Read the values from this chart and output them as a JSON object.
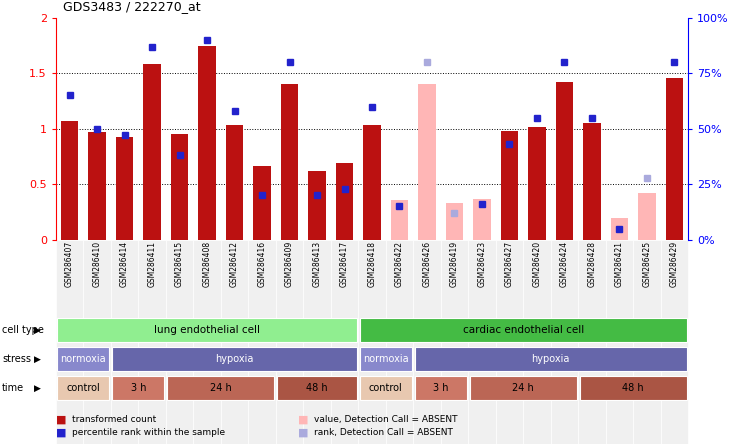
{
  "title": "GDS3483 / 222270_at",
  "samples": [
    "GSM286407",
    "GSM286410",
    "GSM286414",
    "GSM286411",
    "GSM286415",
    "GSM286408",
    "GSM286412",
    "GSM286416",
    "GSM286409",
    "GSM286413",
    "GSM286417",
    "GSM286418",
    "GSM286422",
    "GSM286426",
    "GSM286419",
    "GSM286423",
    "GSM286427",
    "GSM286420",
    "GSM286424",
    "GSM286428",
    "GSM286421",
    "GSM286425",
    "GSM286429"
  ],
  "bar_values": [
    1.07,
    0.97,
    0.93,
    1.58,
    0.95,
    1.75,
    1.03,
    0.66,
    1.4,
    0.62,
    0.69,
    1.03,
    0.36,
    1.4,
    0.33,
    0.37,
    0.98,
    1.02,
    1.42,
    1.05,
    0.2,
    0.42,
    1.46
  ],
  "rank_values": [
    65,
    50,
    47,
    87,
    38,
    90,
    58,
    20,
    80,
    20,
    23,
    60,
    15,
    80,
    12,
    16,
    43,
    55,
    80,
    55,
    5,
    28,
    80
  ],
  "absent_mask": [
    false,
    false,
    false,
    false,
    false,
    false,
    false,
    false,
    false,
    false,
    false,
    false,
    true,
    true,
    true,
    true,
    false,
    false,
    false,
    false,
    true,
    true,
    false
  ],
  "absent_rank_mask": [
    false,
    false,
    false,
    false,
    false,
    false,
    false,
    false,
    false,
    false,
    false,
    false,
    false,
    true,
    true,
    false,
    false,
    false,
    false,
    false,
    false,
    true,
    false
  ],
  "ylim_left": [
    0,
    2.0
  ],
  "ylim_right": [
    0,
    100
  ],
  "yticks_left": [
    0,
    0.5,
    1.0,
    1.5,
    2.0
  ],
  "yticks_right": [
    0,
    25,
    50,
    75,
    100
  ],
  "bar_color": "#BB1111",
  "absent_bar_color": "#FFB6B6",
  "rank_color": "#2222CC",
  "absent_rank_color": "#AAAADD",
  "cell_type_groups": [
    {
      "label": "lung endothelial cell",
      "start": 0,
      "end": 11,
      "color": "#90EE90"
    },
    {
      "label": "cardiac endothelial cell",
      "start": 11,
      "end": 23,
      "color": "#44BB44"
    }
  ],
  "stress_groups": [
    {
      "label": "normoxia",
      "start": 0,
      "end": 2,
      "color": "#8888CC"
    },
    {
      "label": "hypoxia",
      "start": 2,
      "end": 11,
      "color": "#6666AA"
    },
    {
      "label": "normoxia",
      "start": 11,
      "end": 13,
      "color": "#8888CC"
    },
    {
      "label": "hypoxia",
      "start": 13,
      "end": 23,
      "color": "#6666AA"
    }
  ],
  "time_groups": [
    {
      "label": "control",
      "start": 0,
      "end": 2,
      "color": "#E8C8B0"
    },
    {
      "label": "3 h",
      "start": 2,
      "end": 4,
      "color": "#CC7766"
    },
    {
      "label": "24 h",
      "start": 4,
      "end": 8,
      "color": "#BB6655"
    },
    {
      "label": "48 h",
      "start": 8,
      "end": 11,
      "color": "#AA5544"
    },
    {
      "label": "control",
      "start": 11,
      "end": 13,
      "color": "#E8C8B0"
    },
    {
      "label": "3 h",
      "start": 13,
      "end": 15,
      "color": "#CC7766"
    },
    {
      "label": "24 h",
      "start": 15,
      "end": 19,
      "color": "#BB6655"
    },
    {
      "label": "48 h",
      "start": 19,
      "end": 23,
      "color": "#AA5544"
    }
  ],
  "row_labels": [
    "cell type",
    "stress",
    "time"
  ],
  "legend_items": [
    {
      "label": "transformed count",
      "color": "#BB1111"
    },
    {
      "label": "percentile rank within the sample",
      "color": "#2222CC"
    },
    {
      "label": "value, Detection Call = ABSENT",
      "color": "#FFB6B6"
    },
    {
      "label": "rank, Detection Call = ABSENT",
      "color": "#AAAADD"
    }
  ],
  "bg_color": "#F0F0F0"
}
